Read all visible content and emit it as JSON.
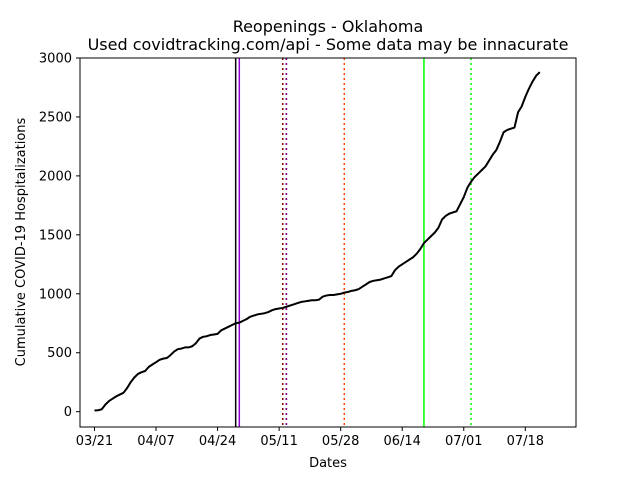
{
  "chart_data": {
    "type": "line",
    "title": "Reopenings - Oklahoma",
    "subtitle": "Used covidtracking.com/api - Some data may be innacurate",
    "xlabel": "Dates",
    "ylabel": "Cumulative COVID-19 Hospitalizations",
    "xlim": [
      "2020-03-17",
      "2020-08-01"
    ],
    "ylim": [
      -130,
      3000
    ],
    "x_ticks": [
      {
        "date": "2020-03-21",
        "label": "03/21"
      },
      {
        "date": "2020-04-07",
        "label": "04/07"
      },
      {
        "date": "2020-04-24",
        "label": "04/24"
      },
      {
        "date": "2020-05-11",
        "label": "05/11"
      },
      {
        "date": "2020-05-28",
        "label": "05/28"
      },
      {
        "date": "2020-06-14",
        "label": "06/14"
      },
      {
        "date": "2020-07-01",
        "label": "07/01"
      },
      {
        "date": "2020-07-18",
        "label": "07/18"
      }
    ],
    "y_ticks": [
      0,
      500,
      1000,
      1500,
      2000,
      2500,
      3000
    ],
    "grid": false,
    "series": [
      {
        "color": "#000000",
        "points": [
          [
            "2020-03-21",
            10
          ],
          [
            "2020-03-22",
            12
          ],
          [
            "2020-03-23",
            20
          ],
          [
            "2020-03-24",
            60
          ],
          [
            "2020-03-25",
            90
          ],
          [
            "2020-03-26",
            110
          ],
          [
            "2020-03-27",
            130
          ],
          [
            "2020-03-28",
            145
          ],
          [
            "2020-03-29",
            160
          ],
          [
            "2020-03-30",
            200
          ],
          [
            "2020-03-31",
            250
          ],
          [
            "2020-04-01",
            290
          ],
          [
            "2020-04-02",
            320
          ],
          [
            "2020-04-03",
            335
          ],
          [
            "2020-04-04",
            345
          ],
          [
            "2020-04-05",
            380
          ],
          [
            "2020-04-06",
            400
          ],
          [
            "2020-04-07",
            420
          ],
          [
            "2020-04-08",
            440
          ],
          [
            "2020-04-09",
            450
          ],
          [
            "2020-04-10",
            455
          ],
          [
            "2020-04-11",
            480
          ],
          [
            "2020-04-12",
            510
          ],
          [
            "2020-04-13",
            530
          ],
          [
            "2020-04-14",
            535
          ],
          [
            "2020-04-15",
            545
          ],
          [
            "2020-04-16",
            545
          ],
          [
            "2020-04-17",
            555
          ],
          [
            "2020-04-18",
            580
          ],
          [
            "2020-04-19",
            620
          ],
          [
            "2020-04-20",
            635
          ],
          [
            "2020-04-21",
            640
          ],
          [
            "2020-04-22",
            650
          ],
          [
            "2020-04-23",
            655
          ],
          [
            "2020-04-24",
            660
          ],
          [
            "2020-04-25",
            690
          ],
          [
            "2020-04-26",
            705
          ],
          [
            "2020-04-27",
            720
          ],
          [
            "2020-04-28",
            735
          ],
          [
            "2020-04-29",
            750
          ],
          [
            "2020-04-30",
            755
          ],
          [
            "2020-05-01",
            770
          ],
          [
            "2020-05-02",
            785
          ],
          [
            "2020-05-03",
            805
          ],
          [
            "2020-05-04",
            815
          ],
          [
            "2020-05-05",
            825
          ],
          [
            "2020-05-06",
            830
          ],
          [
            "2020-05-07",
            835
          ],
          [
            "2020-05-08",
            845
          ],
          [
            "2020-05-09",
            860
          ],
          [
            "2020-05-10",
            870
          ],
          [
            "2020-05-11",
            875
          ],
          [
            "2020-05-12",
            880
          ],
          [
            "2020-05-13",
            890
          ],
          [
            "2020-05-14",
            900
          ],
          [
            "2020-05-15",
            910
          ],
          [
            "2020-05-16",
            920
          ],
          [
            "2020-05-17",
            930
          ],
          [
            "2020-05-18",
            935
          ],
          [
            "2020-05-19",
            940
          ],
          [
            "2020-05-20",
            945
          ],
          [
            "2020-05-21",
            945
          ],
          [
            "2020-05-22",
            950
          ],
          [
            "2020-05-23",
            975
          ],
          [
            "2020-05-24",
            985
          ],
          [
            "2020-05-25",
            990
          ],
          [
            "2020-05-26",
            990
          ],
          [
            "2020-05-27",
            995
          ],
          [
            "2020-05-28",
            1000
          ],
          [
            "2020-05-29",
            1010
          ],
          [
            "2020-05-30",
            1015
          ],
          [
            "2020-05-31",
            1025
          ],
          [
            "2020-06-01",
            1030
          ],
          [
            "2020-06-02",
            1040
          ],
          [
            "2020-06-03",
            1060
          ],
          [
            "2020-06-04",
            1080
          ],
          [
            "2020-06-05",
            1100
          ],
          [
            "2020-06-06",
            1110
          ],
          [
            "2020-06-07",
            1115
          ],
          [
            "2020-06-08",
            1120
          ],
          [
            "2020-06-09",
            1130
          ],
          [
            "2020-06-10",
            1140
          ],
          [
            "2020-06-11",
            1150
          ],
          [
            "2020-06-12",
            1200
          ],
          [
            "2020-06-13",
            1230
          ],
          [
            "2020-06-14",
            1250
          ],
          [
            "2020-06-15",
            1270
          ],
          [
            "2020-06-16",
            1290
          ],
          [
            "2020-06-17",
            1310
          ],
          [
            "2020-06-18",
            1340
          ],
          [
            "2020-06-19",
            1380
          ],
          [
            "2020-06-20",
            1430
          ],
          [
            "2020-06-21",
            1460
          ],
          [
            "2020-06-22",
            1490
          ],
          [
            "2020-06-23",
            1520
          ],
          [
            "2020-06-24",
            1560
          ],
          [
            "2020-06-25",
            1630
          ],
          [
            "2020-06-26",
            1660
          ],
          [
            "2020-06-27",
            1680
          ],
          [
            "2020-06-28",
            1690
          ],
          [
            "2020-06-29",
            1700
          ],
          [
            "2020-06-30",
            1760
          ],
          [
            "2020-07-01",
            1820
          ],
          [
            "2020-07-02",
            1900
          ],
          [
            "2020-07-03",
            1950
          ],
          [
            "2020-07-04",
            1990
          ],
          [
            "2020-07-05",
            2020
          ],
          [
            "2020-07-06",
            2050
          ],
          [
            "2020-07-07",
            2080
          ],
          [
            "2020-07-08",
            2130
          ],
          [
            "2020-07-09",
            2180
          ],
          [
            "2020-07-10",
            2220
          ],
          [
            "2020-07-11",
            2290
          ],
          [
            "2020-07-12",
            2370
          ],
          [
            "2020-07-13",
            2390
          ],
          [
            "2020-07-14",
            2400
          ],
          [
            "2020-07-15",
            2410
          ],
          [
            "2020-07-16",
            2540
          ],
          [
            "2020-07-17",
            2590
          ],
          [
            "2020-07-18",
            2670
          ],
          [
            "2020-07-19",
            2740
          ],
          [
            "2020-07-20",
            2800
          ],
          [
            "2020-07-21",
            2850
          ],
          [
            "2020-07-22",
            2880
          ]
        ]
      }
    ],
    "vertical_lines": [
      {
        "date": "2020-04-29",
        "color": "#000000",
        "style": "solid"
      },
      {
        "date": "2020-04-30",
        "color": "#9400d3",
        "style": "solid"
      },
      {
        "date": "2020-05-12",
        "color": "#ff0000",
        "style": "dotted"
      },
      {
        "date": "2020-05-12",
        "color": "#8b0000",
        "style": "dotted"
      },
      {
        "date": "2020-05-13",
        "color": "#0000ff",
        "style": "dotted"
      },
      {
        "date": "2020-05-13",
        "color": "#8b008b",
        "style": "dotted"
      },
      {
        "date": "2020-05-29",
        "color": "#ff4500",
        "style": "dotted"
      },
      {
        "date": "2020-06-20",
        "color": "#00ff00",
        "style": "solid"
      },
      {
        "date": "2020-07-03",
        "color": "#00ff00",
        "style": "dotted"
      }
    ]
  }
}
